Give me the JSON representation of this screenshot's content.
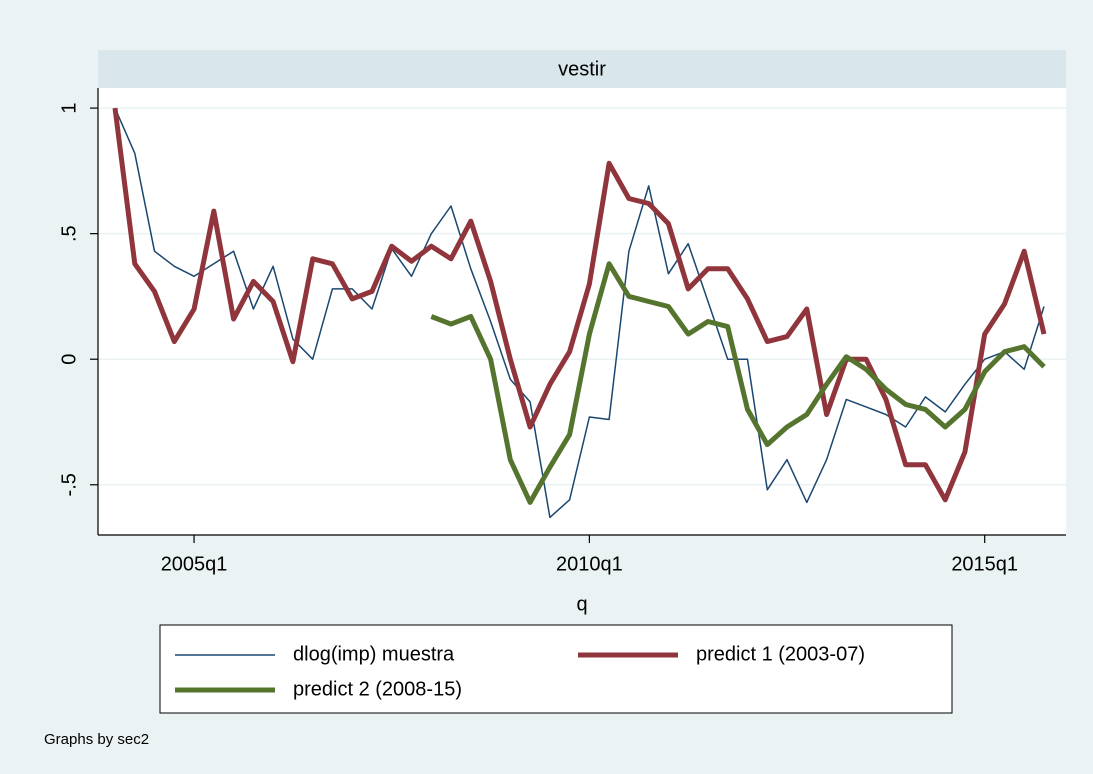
{
  "chart_data": {
    "type": "line",
    "title": "vestir",
    "x_label": "q",
    "note": "Graphs by sec2",
    "categories": [
      "2004q1",
      "2004q2",
      "2004q3",
      "2004q4",
      "2005q1",
      "2005q2",
      "2005q3",
      "2005q4",
      "2006q1",
      "2006q2",
      "2006q3",
      "2006q4",
      "2007q1",
      "2007q2",
      "2007q3",
      "2007q4",
      "2008q1",
      "2008q2",
      "2008q3",
      "2008q4",
      "2009q1",
      "2009q2",
      "2009q3",
      "2009q4",
      "2010q1",
      "2010q2",
      "2010q3",
      "2010q4",
      "2011q1",
      "2011q2",
      "2011q3",
      "2011q4",
      "2012q1",
      "2012q2",
      "2012q3",
      "2012q4",
      "2013q1",
      "2013q2",
      "2013q3",
      "2013q4",
      "2014q1",
      "2014q2",
      "2014q3",
      "2014q4",
      "2015q1",
      "2015q2",
      "2015q3",
      "2015q4"
    ],
    "xticks": [
      "2005q1",
      "2010q1",
      "2015q1"
    ],
    "ylim": [
      -0.7,
      1.08
    ],
    "yticks": [
      {
        "value": -0.5,
        "label": "-.5"
      },
      0,
      {
        "value": 0.5,
        "label": ".5"
      },
      1
    ],
    "grid": true,
    "series": [
      {
        "name": "dlog(imp) muestra",
        "color": "#1a476f",
        "values": [
          1.0,
          0.82,
          0.43,
          0.37,
          0.33,
          0.38,
          0.43,
          0.2,
          0.37,
          0.08,
          0.0,
          0.28,
          0.28,
          0.2,
          0.44,
          0.33,
          0.5,
          0.61,
          0.36,
          0.15,
          -0.08,
          -0.17,
          -0.63,
          -0.56,
          -0.23,
          -0.24,
          0.43,
          0.69,
          0.34,
          0.46,
          0.23,
          0.0,
          0.0,
          -0.52,
          -0.4,
          -0.57,
          -0.4,
          -0.16,
          -0.19,
          -0.22,
          -0.27,
          -0.15,
          -0.21,
          -0.1,
          0.0,
          0.03,
          -0.04,
          0.21
        ]
      },
      {
        "name": "predict 1 (2003-07)",
        "color": "#90353b",
        "values": [
          1.0,
          0.38,
          0.27,
          0.07,
          0.2,
          0.59,
          0.16,
          0.31,
          0.23,
          -0.01,
          0.4,
          0.38,
          0.24,
          0.27,
          0.45,
          0.39,
          0.45,
          0.4,
          0.55,
          0.31,
          0.0,
          -0.27,
          -0.1,
          0.03,
          0.3,
          0.78,
          0.64,
          0.62,
          0.54,
          0.28,
          0.36,
          0.36,
          0.24,
          0.07,
          0.09,
          0.2,
          -0.22,
          0.0,
          0.0,
          -0.16,
          -0.42,
          -0.42,
          -0.56,
          -0.37,
          0.1,
          0.22,
          0.43,
          0.1
        ]
      },
      {
        "name": "predict 2 (2008-15)",
        "color": "#55752f",
        "values": [
          null,
          null,
          null,
          null,
          null,
          null,
          null,
          null,
          null,
          null,
          null,
          null,
          null,
          null,
          null,
          null,
          0.17,
          0.14,
          0.17,
          0.0,
          -0.4,
          -0.57,
          -0.43,
          -0.3,
          0.1,
          0.38,
          0.25,
          0.23,
          0.21,
          0.1,
          0.15,
          0.13,
          -0.2,
          -0.34,
          -0.27,
          -0.22,
          -0.1,
          0.01,
          -0.04,
          -0.12,
          -0.18,
          -0.2,
          -0.27,
          -0.2,
          -0.05,
          0.03,
          0.05,
          -0.03
        ]
      }
    ]
  }
}
